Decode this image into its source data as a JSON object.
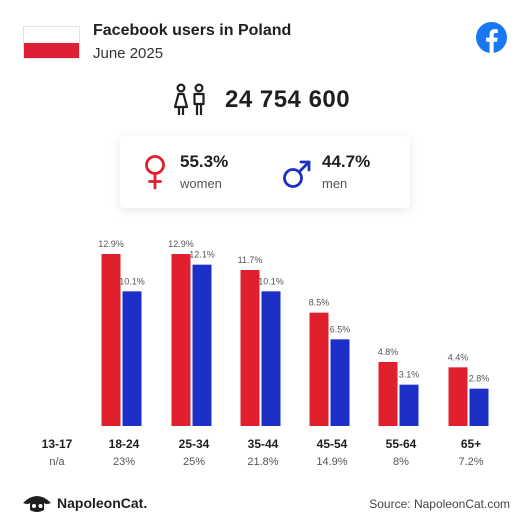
{
  "header": {
    "title": "Facebook users in Poland",
    "subtitle": "June 2025"
  },
  "total": {
    "value": "24 754 600"
  },
  "gender": {
    "women": {
      "value": "55.3%",
      "label": "women",
      "color": "#e0202c"
    },
    "men": {
      "value": "44.7%",
      "label": "men",
      "color": "#1c2fc6"
    }
  },
  "chart_data": {
    "type": "bar",
    "categories": [
      "13-17",
      "18-24",
      "25-34",
      "35-44",
      "45-54",
      "55-64",
      "65+"
    ],
    "category_shares": [
      "n/a",
      "23%",
      "25%",
      "21.8%",
      "14.9%",
      "8%",
      "7.2%"
    ],
    "series": [
      {
        "name": "women",
        "color": "#e0202c",
        "values": [
          null,
          12.9,
          12.9,
          11.7,
          8.5,
          4.8,
          4.4
        ],
        "labels": [
          "",
          "12.9%",
          "12.9%",
          "11.7%",
          "8.5%",
          "4.8%",
          "4.4%"
        ]
      },
      {
        "name": "men",
        "color": "#1c2fc6",
        "values": [
          null,
          10.1,
          12.1,
          10.1,
          6.5,
          3.1,
          2.8
        ],
        "labels": [
          "",
          "10.1%",
          "12.1%",
          "10.1%",
          "6.5%",
          "3.1%",
          "2.8%"
        ]
      }
    ],
    "ylim": [
      0,
      12.9
    ],
    "grid": false
  },
  "footer": {
    "brand": "NapoleonCat.",
    "source": "Source: NapoleonCat.com"
  }
}
